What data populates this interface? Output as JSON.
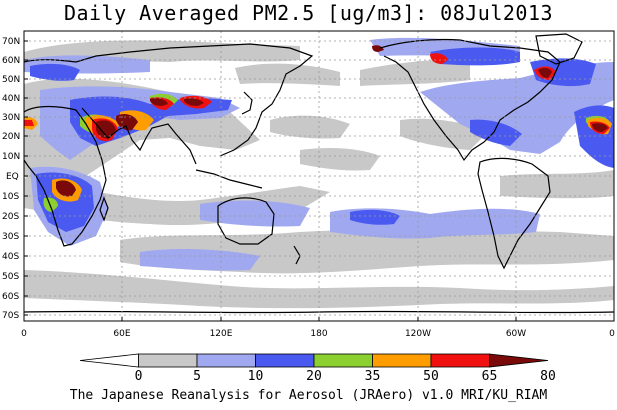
{
  "title": "Daily Averaged PM2.5 [ug/m3]: 08Jul2013",
  "footer": "The Japanese Reanalysis for Aerosol (JRAero) v1.0 MRI/KU_RIAM",
  "lat_labels": [
    "70N",
    "60N",
    "50N",
    "40N",
    "30N",
    "20N",
    "10N",
    "EQ",
    "10S",
    "20S",
    "30S",
    "40S",
    "50S",
    "60S",
    "70S"
  ],
  "lon_labels": [
    "0",
    "60E",
    "120E",
    "180",
    "120W",
    "60W",
    "0"
  ],
  "colorbar": {
    "labels": [
      "0",
      "5",
      "10",
      "20",
      "35",
      "50",
      "65",
      "80"
    ],
    "colors": [
      "#ffffff",
      "#c8c8c8",
      "#a0a8f0",
      "#4a5af0",
      "#8ccf30",
      "#ff9c00",
      "#f01010",
      "#7a0a0a"
    ]
  }
}
